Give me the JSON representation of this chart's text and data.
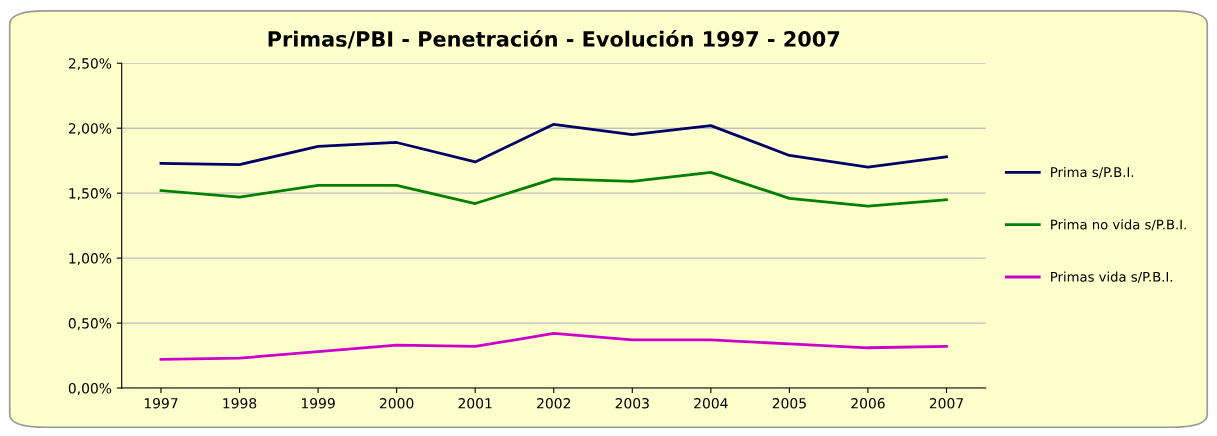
{
  "chart_data": {
    "type": "line",
    "title": "Primas/PBI - Penetración - Evolución 1997 - 2007",
    "categories": [
      "1997",
      "1998",
      "1999",
      "2000",
      "2001",
      "2002",
      "2003",
      "2004",
      "2005",
      "2006",
      "2007"
    ],
    "series": [
      {
        "name": "Prima s/P.B.I.",
        "color": "#000066",
        "values": [
          1.73,
          1.72,
          1.86,
          1.89,
          1.74,
          2.03,
          1.95,
          2.02,
          1.79,
          1.7,
          1.78
        ]
      },
      {
        "name": "Prima no vida s/P.B.I.",
        "color": "#008000",
        "values": [
          1.52,
          1.47,
          1.56,
          1.56,
          1.42,
          1.61,
          1.59,
          1.66,
          1.46,
          1.4,
          1.45
        ]
      },
      {
        "name": "Primas vida s/P.B.I.",
        "color": "#cc00cc",
        "values": [
          0.22,
          0.23,
          0.28,
          0.33,
          0.32,
          0.42,
          0.37,
          0.37,
          0.34,
          0.31,
          0.32
        ]
      }
    ],
    "ylim": [
      0,
      2.5
    ],
    "yticks": [
      {
        "value": 0,
        "label": "0,00%"
      },
      {
        "value": 0.5,
        "label": "0,50%"
      },
      {
        "value": 1.0,
        "label": "1,00%"
      },
      {
        "value": 1.5,
        "label": "1,50%"
      },
      {
        "value": 2.0,
        "label": "2,00%"
      },
      {
        "value": 2.5,
        "label": "2,50%"
      }
    ],
    "grid": "y",
    "legend": "right",
    "marker": "none",
    "line_style": "solid"
  }
}
